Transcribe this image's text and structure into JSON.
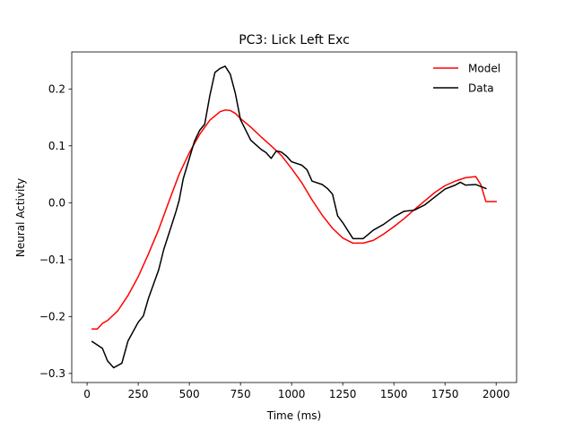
{
  "chart_data": {
    "type": "line",
    "title": "PC3: Lick Left Exc",
    "xlabel": "Time (ms)",
    "ylabel": "Neural Activity",
    "xlim": [
      -75,
      2100
    ],
    "ylim": [
      -0.316,
      0.265
    ],
    "x_ticks": [
      0,
      250,
      500,
      750,
      1000,
      1250,
      1500,
      1750,
      2000
    ],
    "x_tick_labels": [
      "0",
      "250",
      "500",
      "750",
      "1000",
      "1250",
      "1500",
      "1750",
      "2000"
    ],
    "y_ticks": [
      -0.3,
      -0.2,
      -0.1,
      0.0,
      0.1,
      0.2
    ],
    "y_tick_labels": [
      "−0.3",
      "−0.2",
      "−0.1",
      "0.0",
      "0.1",
      "0.2"
    ],
    "grid": false,
    "legend_position": "top-right",
    "series": [
      {
        "name": "Model",
        "color": "#ff0000",
        "points": [
          [
            25,
            -0.222
          ],
          [
            50,
            -0.222
          ],
          [
            75,
            -0.212
          ],
          [
            100,
            -0.207
          ],
          [
            150,
            -0.19
          ],
          [
            200,
            -0.163
          ],
          [
            250,
            -0.13
          ],
          [
            300,
            -0.09
          ],
          [
            350,
            -0.047
          ],
          [
            400,
            0.002
          ],
          [
            450,
            0.05
          ],
          [
            500,
            0.088
          ],
          [
            550,
            0.12
          ],
          [
            600,
            0.145
          ],
          [
            650,
            0.16
          ],
          [
            675,
            0.163
          ],
          [
            700,
            0.162
          ],
          [
            725,
            0.157
          ],
          [
            750,
            0.148
          ],
          [
            800,
            0.133
          ],
          [
            850,
            0.116
          ],
          [
            900,
            0.1
          ],
          [
            950,
            0.083
          ],
          [
            1000,
            0.06
          ],
          [
            1050,
            0.035
          ],
          [
            1100,
            0.005
          ],
          [
            1150,
            -0.022
          ],
          [
            1200,
            -0.045
          ],
          [
            1250,
            -0.062
          ],
          [
            1300,
            -0.071
          ],
          [
            1350,
            -0.071
          ],
          [
            1400,
            -0.066
          ],
          [
            1450,
            -0.055
          ],
          [
            1500,
            -0.042
          ],
          [
            1550,
            -0.028
          ],
          [
            1600,
            -0.012
          ],
          [
            1650,
            0.003
          ],
          [
            1700,
            0.018
          ],
          [
            1750,
            0.03
          ],
          [
            1800,
            0.038
          ],
          [
            1850,
            0.044
          ],
          [
            1900,
            0.046
          ],
          [
            1925,
            0.032
          ],
          [
            1950,
            0.002
          ],
          [
            2000,
            0.002
          ]
        ]
      },
      {
        "name": "Data",
        "color": "#000000",
        "points": [
          [
            25,
            -0.244
          ],
          [
            75,
            -0.256
          ],
          [
            100,
            -0.278
          ],
          [
            130,
            -0.29
          ],
          [
            170,
            -0.282
          ],
          [
            200,
            -0.243
          ],
          [
            250,
            -0.21
          ],
          [
            275,
            -0.199
          ],
          [
            300,
            -0.168
          ],
          [
            350,
            -0.118
          ],
          [
            375,
            -0.082
          ],
          [
            420,
            -0.032
          ],
          [
            435,
            -0.015
          ],
          [
            450,
            0.004
          ],
          [
            470,
            0.042
          ],
          [
            500,
            0.078
          ],
          [
            525,
            0.108
          ],
          [
            550,
            0.127
          ],
          [
            575,
            0.138
          ],
          [
            600,
            0.188
          ],
          [
            625,
            0.229
          ],
          [
            650,
            0.236
          ],
          [
            675,
            0.24
          ],
          [
            700,
            0.226
          ],
          [
            725,
            0.192
          ],
          [
            750,
            0.146
          ],
          [
            800,
            0.11
          ],
          [
            850,
            0.094
          ],
          [
            875,
            0.088
          ],
          [
            900,
            0.078
          ],
          [
            925,
            0.091
          ],
          [
            950,
            0.089
          ],
          [
            975,
            0.082
          ],
          [
            1000,
            0.072
          ],
          [
            1050,
            0.066
          ],
          [
            1075,
            0.058
          ],
          [
            1100,
            0.038
          ],
          [
            1150,
            0.032
          ],
          [
            1175,
            0.025
          ],
          [
            1200,
            0.015
          ],
          [
            1225,
            -0.023
          ],
          [
            1250,
            -0.035
          ],
          [
            1300,
            -0.063
          ],
          [
            1350,
            -0.063
          ],
          [
            1400,
            -0.048
          ],
          [
            1450,
            -0.038
          ],
          [
            1500,
            -0.025
          ],
          [
            1550,
            -0.015
          ],
          [
            1600,
            -0.013
          ],
          [
            1650,
            -0.004
          ],
          [
            1700,
            0.01
          ],
          [
            1750,
            0.024
          ],
          [
            1800,
            0.031
          ],
          [
            1825,
            0.036
          ],
          [
            1850,
            0.031
          ],
          [
            1900,
            0.032
          ],
          [
            1950,
            0.025
          ]
        ]
      }
    ]
  }
}
